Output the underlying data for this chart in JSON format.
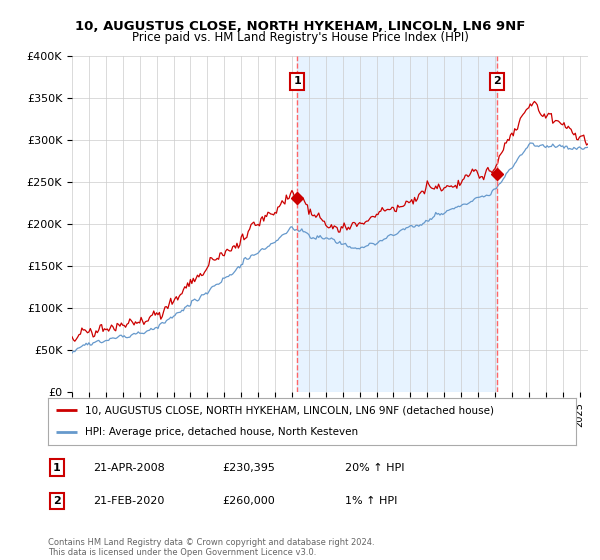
{
  "title": "10, AUGUSTUS CLOSE, NORTH HYKEHAM, LINCOLN, LN6 9NF",
  "subtitle": "Price paid vs. HM Land Registry's House Price Index (HPI)",
  "ylabel_ticks": [
    "£0",
    "£50K",
    "£100K",
    "£150K",
    "£200K",
    "£250K",
    "£300K",
    "£350K",
    "£400K"
  ],
  "ytick_vals": [
    0,
    50000,
    100000,
    150000,
    200000,
    250000,
    300000,
    350000,
    400000
  ],
  "ylim": [
    0,
    400000
  ],
  "xlim_start": 1995.0,
  "xlim_end": 2025.5,
  "sale1_x": 2008.31,
  "sale1_y": 230395,
  "sale2_x": 2020.12,
  "sale2_y": 260000,
  "sale1_label": "1",
  "sale2_label": "2",
  "legend_line1": "10, AUGUSTUS CLOSE, NORTH HYKEHAM, LINCOLN, LN6 9NF (detached house)",
  "legend_line2": "HPI: Average price, detached house, North Kesteven",
  "footer": "Contains HM Land Registry data © Crown copyright and database right 2024.\nThis data is licensed under the Open Government Licence v3.0.",
  "line_color_red": "#cc0000",
  "line_color_blue": "#6699cc",
  "fill_color": "#ddeeff",
  "vline_color": "#ff6666",
  "background_color": "#ffffff",
  "grid_color": "#cccccc"
}
